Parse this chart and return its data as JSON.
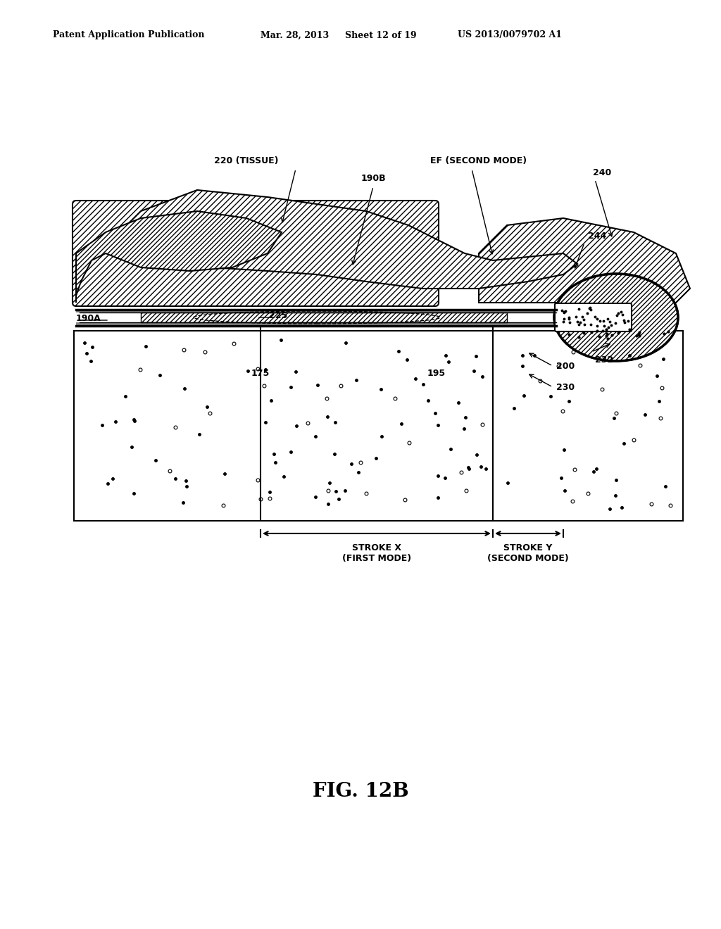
{
  "bg_color": "#ffffff",
  "header_text": "Patent Application Publication",
  "header_date": "Mar. 28, 2013",
  "header_sheet": "Sheet 12 of 19",
  "header_patent": "US 2013/0079702 A1",
  "fig_label": "FIG. 12B",
  "labels": {
    "220": "220 (TISSUE)",
    "190B": "190B",
    "EF": "EF (SECOND MODE)",
    "240": "240",
    "244": "244",
    "190A": "190A",
    "225": "225",
    "175": "175",
    "195": "195",
    "232": "232",
    "200": "200",
    "230": "230",
    "stroke_x": "STROKE X\n(FIRST MODE)",
    "stroke_y": "STROKE Y\n(SECOND MODE)"
  }
}
